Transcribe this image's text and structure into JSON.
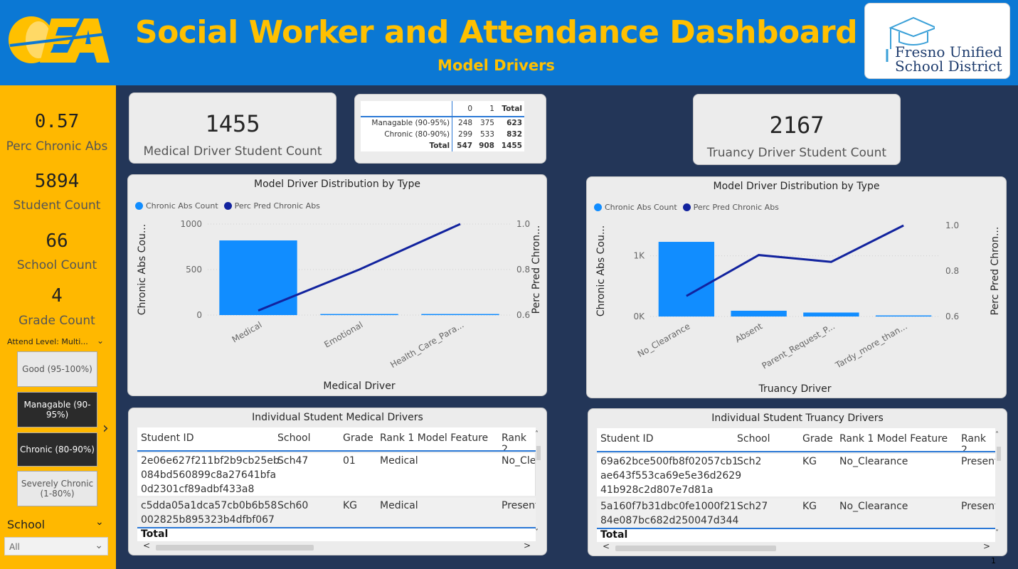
{
  "header": {
    "title": "Social Worker and Attendance Dashboard",
    "subtitle": "Model Drivers",
    "logo_right_line1": "Fresno Unified",
    "logo_right_line2": "School District",
    "colors": {
      "banner": "#0b78d4",
      "title": "#ffc000",
      "sidebar": "#ffb800",
      "background": "#233658"
    }
  },
  "sidebar": {
    "kpis": [
      {
        "value": "0.57",
        "label": "Perc Chronic Abs"
      },
      {
        "value": "5894",
        "label": "Student Count"
      },
      {
        "value": "66",
        "label": "School Count"
      },
      {
        "value": "4",
        "label": "Grade Count"
      }
    ],
    "attend_slicer_title": "Attend Level: Multi...",
    "attend_options": [
      {
        "label": "Good (95-100%)",
        "selected": false
      },
      {
        "label": "Managable (90-95%)",
        "selected": true
      },
      {
        "label": "Chronic (80-90%)",
        "selected": true
      },
      {
        "label": "Severely Chronic (1-80%)",
        "selected": false
      }
    ],
    "school_label": "School",
    "school_value": "All"
  },
  "medical": {
    "count_value": "1455",
    "count_label": "Medical Driver Student Count",
    "matrix": {
      "headers": [
        "",
        "0",
        "1",
        "Total"
      ],
      "rows": [
        [
          "Managable (90-95%)",
          "248",
          "375",
          "623"
        ],
        [
          "Chronic (80-90%)",
          "299",
          "533",
          "832"
        ],
        [
          "Total",
          "547",
          "908",
          "1455"
        ]
      ]
    }
  },
  "truancy": {
    "count_value": "2167",
    "count_label": "Truancy Driver Student Count"
  },
  "legend": {
    "bar": "Chronic Abs Count",
    "line": "Perc Pred Chronic Abs",
    "bar_color": "#118dff",
    "line_color": "#12239e"
  },
  "chart_data": [
    {
      "type": "bar",
      "title": "Model Driver Distribution by Type",
      "xlabel": "Medical Driver",
      "ylabel": "Chronic Abs Cou...",
      "y2label": "Perc Pred Chron...",
      "categories": [
        "Medical",
        "Emotional",
        "Health_Care_Para..."
      ],
      "series": [
        {
          "name": "Chronic Abs Count",
          "type": "bar",
          "values": [
            820,
            8,
            6
          ]
        },
        {
          "name": "Perc Pred Chronic Abs",
          "type": "line",
          "axis": "right",
          "values": [
            0.62,
            0.8,
            1.0
          ]
        }
      ],
      "ylim": [
        0,
        1000
      ],
      "yticks": [
        "0",
        "500",
        "1000"
      ],
      "y2lim": [
        0.6,
        1.0
      ],
      "y2ticks": [
        "0.6",
        "0.8",
        "1.0"
      ]
    },
    {
      "type": "bar",
      "title": "Model Driver Distribution by Type",
      "xlabel": "Truancy Driver",
      "ylabel": "Chronic Abs Cou...",
      "y2label": "Perc Pred Chron...",
      "categories": [
        "No_Clearance",
        "Absent",
        "Parent_Request_P...",
        "Tardy_more_than..."
      ],
      "series": [
        {
          "name": "Chronic Abs Count",
          "type": "bar",
          "values": [
            1230,
            95,
            65,
            15
          ]
        },
        {
          "name": "Perc Pred Chronic Abs",
          "type": "line",
          "axis": "right",
          "values": [
            0.69,
            0.87,
            0.84,
            1.0
          ]
        }
      ],
      "ylim": [
        0,
        1500
      ],
      "yticks": [
        "0K",
        "1K"
      ],
      "y2lim": [
        0.6,
        1.0
      ],
      "y2ticks": [
        "0.6",
        "0.8",
        "1.0"
      ]
    }
  ],
  "medical_table": {
    "title": "Individual Student Medical Drivers",
    "columns": [
      "Student ID",
      "School",
      "Grade",
      "Rank 1 Model Feature",
      "Rank 2"
    ],
    "rows": [
      {
        "id_lines": [
          "2e06e627f211bf2b9cb25eb",
          "084bd560899c8a27641bfa",
          "0d2301cf89adbf433a8"
        ],
        "school": "Sch47",
        "grade": "01",
        "rank1": "Medical",
        "rank2": "No_Cle"
      },
      {
        "id_lines": [
          "c5dda05a1dca57cb0b6b58",
          "002825b895323b4dfbf067"
        ],
        "school": "Sch60",
        "grade": "KG",
        "rank1": "Medical",
        "rank2": "Present"
      }
    ],
    "total_label": "Total"
  },
  "truancy_table": {
    "title": "Individual Student Truancy Drivers",
    "columns": [
      "Student ID",
      "School",
      "Grade",
      "Rank 1 Model Feature",
      "Rank 2"
    ],
    "rows": [
      {
        "id_lines": [
          "69a62bce500fb8f02057cb1",
          "ae643f553ca69e5e36d2629",
          "41b928c2d807e7d81a"
        ],
        "school": "Sch2",
        "grade": "KG",
        "rank1": "No_Clearance",
        "rank2": "Present"
      },
      {
        "id_lines": [
          "5a160f7b31dbc0fe1000f21",
          "84e087bc682d250047d344"
        ],
        "school": "Sch27",
        "grade": "KG",
        "rank1": "No_Clearance",
        "rank2": "Present"
      }
    ],
    "total_label": "Total"
  },
  "page_number": "1"
}
